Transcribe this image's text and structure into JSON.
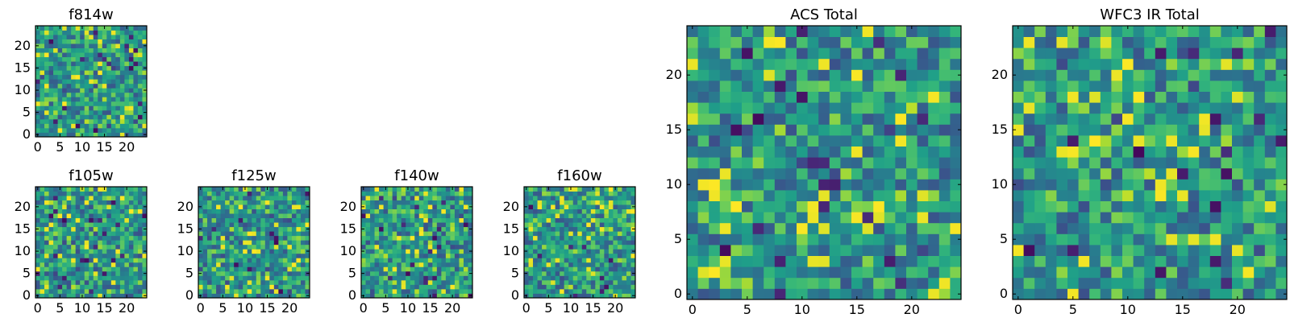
{
  "chart_data": [
    {
      "type": "heatmap",
      "title": "f814w",
      "xticks": [
        "0",
        "5",
        "10",
        "15",
        "20"
      ],
      "yticks": [
        "0",
        "5",
        "10",
        "15",
        "20"
      ],
      "xlim": [
        -0.5,
        24.5
      ],
      "ylim": [
        -0.5,
        24.5
      ],
      "grid_size": 25,
      "colormap": "viridis",
      "seed": 11
    },
    {
      "type": "heatmap",
      "title": "f105w",
      "xticks": [
        "0",
        "5",
        "10",
        "15",
        "20"
      ],
      "yticks": [
        "0",
        "5",
        "10",
        "15",
        "20"
      ],
      "xlim": [
        -0.5,
        24.5
      ],
      "ylim": [
        -0.5,
        24.5
      ],
      "grid_size": 25,
      "colormap": "viridis",
      "seed": 23
    },
    {
      "type": "heatmap",
      "title": "f125w",
      "xticks": [
        "0",
        "5",
        "10",
        "15",
        "20"
      ],
      "yticks": [
        "0",
        "5",
        "10",
        "15",
        "20"
      ],
      "xlim": [
        -0.5,
        24.5
      ],
      "ylim": [
        -0.5,
        24.5
      ],
      "grid_size": 25,
      "colormap": "viridis",
      "seed": 37
    },
    {
      "type": "heatmap",
      "title": "f140w",
      "xticks": [
        "0",
        "5",
        "10",
        "15",
        "20"
      ],
      "yticks": [
        "0",
        "5",
        "10",
        "15",
        "20"
      ],
      "xlim": [
        -0.5,
        24.5
      ],
      "ylim": [
        -0.5,
        24.5
      ],
      "grid_size": 25,
      "colormap": "viridis",
      "seed": 41
    },
    {
      "type": "heatmap",
      "title": "f160w",
      "xticks": [
        "0",
        "5",
        "10",
        "15",
        "20"
      ],
      "yticks": [
        "0",
        "5",
        "10",
        "15",
        "20"
      ],
      "xlim": [
        -0.5,
        24.5
      ],
      "ylim": [
        -0.5,
        24.5
      ],
      "grid_size": 25,
      "colormap": "viridis",
      "seed": 53
    },
    {
      "type": "heatmap",
      "title": "ACS Total",
      "xticks": [
        "0",
        "5",
        "10",
        "15",
        "20"
      ],
      "yticks": [
        "0",
        "5",
        "10",
        "15",
        "20"
      ],
      "xlim": [
        -0.5,
        24.5
      ],
      "ylim": [
        -0.5,
        24.5
      ],
      "grid_size": 25,
      "colormap": "viridis",
      "seed": 67
    },
    {
      "type": "heatmap",
      "title": "WFC3 IR Total",
      "xticks": [
        "0",
        "5",
        "10",
        "15",
        "20"
      ],
      "yticks": [
        "0",
        "5",
        "10",
        "15",
        "20"
      ],
      "xlim": [
        -0.5,
        24.5
      ],
      "ylim": [
        -0.5,
        24.5
      ],
      "grid_size": 25,
      "colormap": "viridis",
      "seed": 79
    }
  ]
}
